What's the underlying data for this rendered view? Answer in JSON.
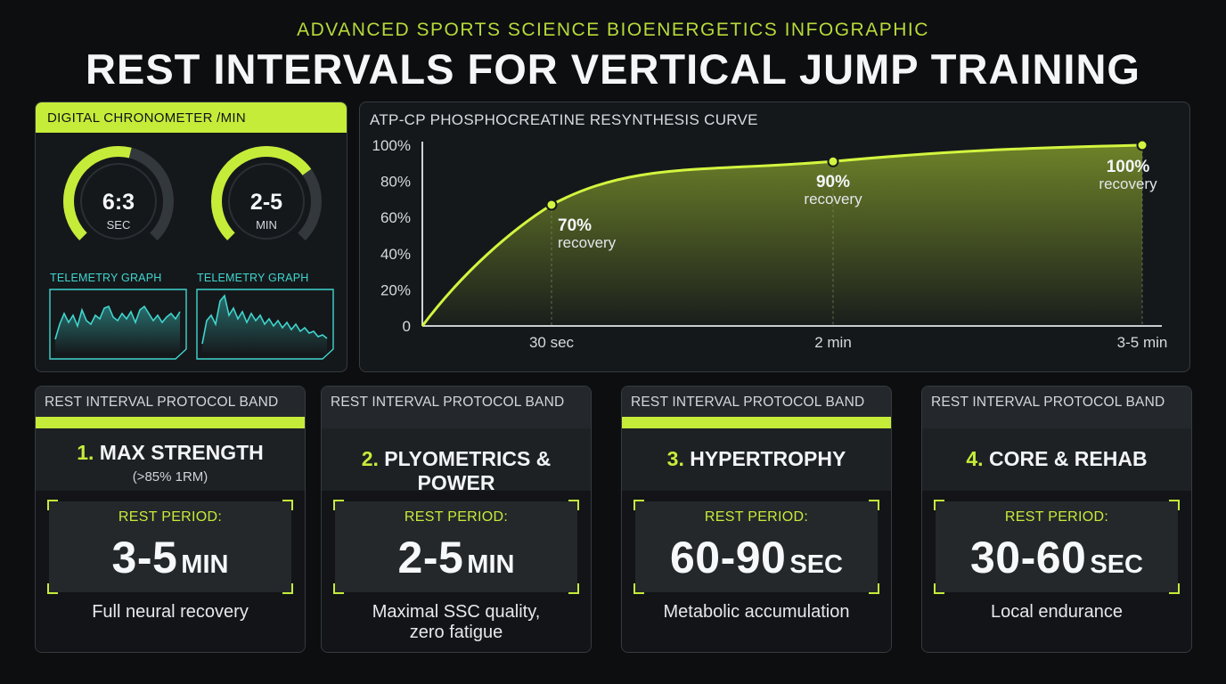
{
  "header": {
    "subtitle": "ADVANCED SPORTS SCIENCE BIOENERGETICS INFOGRAPHIC",
    "title": "REST INTERVALS FOR VERTICAL JUMP TRAINING"
  },
  "chronometer": {
    "header": "DIGITAL CHRONOMETER /MIN",
    "gauges": [
      {
        "value": "6:3",
        "unit": "SEC",
        "fill_fraction": 0.55
      },
      {
        "value": "2-5",
        "unit": "MIN",
        "fill_fraction": 0.7
      }
    ],
    "telemetry": [
      {
        "label": "TELEMETRY GRAPH"
      },
      {
        "label": "TELEMETRY GRAPH"
      }
    ]
  },
  "colors": {
    "accent": "#c6ec3a",
    "teal": "#3fd6cf",
    "background": "#0c0e10",
    "panel": "#15181b"
  },
  "chart_data": {
    "type": "area",
    "title": "ATP-CP PHOSPHOCREATINE RESYNTHESIS CURVE",
    "xlabel": "",
    "ylabel": "",
    "x_ticks": [
      "30 sec",
      "2 min",
      "3-5 min"
    ],
    "y_ticks": [
      "100%",
      "80%",
      "60%",
      "40%",
      "20%",
      "0"
    ],
    "ylim": [
      0,
      100
    ],
    "grid": false,
    "series": [
      {
        "points": [
          {
            "x": "0",
            "y": 0
          },
          {
            "x": "30 sec",
            "y": 67
          },
          {
            "x": "2 min",
            "y": 91
          },
          {
            "x": "3-5 min",
            "y": 100
          }
        ]
      }
    ],
    "annotations": [
      {
        "at": "30 sec",
        "value": "70%",
        "text": "recovery"
      },
      {
        "at": "2 min",
        "value": "90%",
        "text": "recovery"
      },
      {
        "at": "3-5 min",
        "value": "100%",
        "text": "recovery"
      }
    ]
  },
  "bands": [
    {
      "header": "REST INTERVAL PROTOCOL BAND",
      "num": "1.",
      "name": "MAX STRENGTH",
      "sub": "(>85% 1RM)",
      "rest_label": "REST PERIOD:",
      "rest_value": "3-5",
      "rest_unit": "MIN",
      "desc": "Full neural recovery",
      "highlight": true
    },
    {
      "header": "REST INTERVAL PROTOCOL BAND",
      "num": "2.",
      "name": "PLYOMETRICS & POWER",
      "sub": "",
      "rest_label": "REST PERIOD:",
      "rest_value": "2-5",
      "rest_unit": "MIN",
      "desc": "Maximal SSC quality,\nzero fatigue",
      "highlight": false
    },
    {
      "header": "REST INTERVAL PROTOCOL BAND",
      "num": "3.",
      "name": "HYPERTROPHY",
      "sub": "",
      "rest_label": "REST PERIOD:",
      "rest_value": "60-90",
      "rest_unit": "SEC",
      "desc": "Metabolic accumulation",
      "highlight": true
    },
    {
      "header": "REST INTERVAL PROTOCOL BAND",
      "num": "4.",
      "name": "CORE & REHAB",
      "sub": "",
      "rest_label": "REST PERIOD:",
      "rest_value": "30-60",
      "rest_unit": "SEC",
      "desc": "Local endurance",
      "highlight": false
    }
  ]
}
